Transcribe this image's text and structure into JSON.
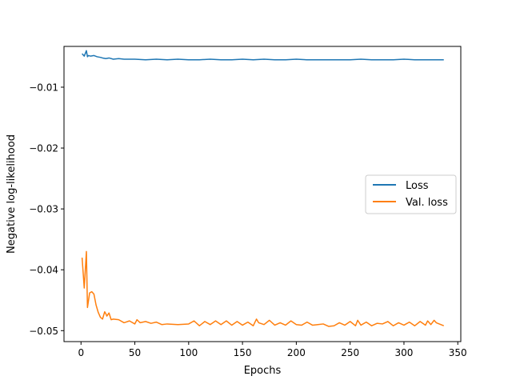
{
  "chart_data": {
    "type": "line",
    "title": "",
    "xlabel": "Epochs",
    "ylabel": "Negative log-likelihood",
    "xlim": [
      -15.8,
      352.8
    ],
    "ylim": [
      -0.0518,
      -0.0033
    ],
    "x_ticks": [
      0,
      50,
      100,
      150,
      200,
      250,
      300,
      350
    ],
    "x_tick_labels": [
      "0",
      "50",
      "100",
      "150",
      "200",
      "250",
      "300",
      "350"
    ],
    "y_ticks": [
      -0.01,
      -0.02,
      -0.03,
      -0.04,
      -0.05
    ],
    "y_tick_labels": [
      "−0.01",
      "−0.02",
      "−0.03",
      "−0.04",
      "−0.05"
    ],
    "grid": false,
    "legend_position": "center-right",
    "series": [
      {
        "name": "Loss",
        "color": "#1f77b4",
        "x": [
          1,
          3,
          5,
          6,
          7,
          9,
          12,
          15,
          18,
          20,
          23,
          26,
          30,
          35,
          40,
          50,
          60,
          70,
          80,
          90,
          100,
          110,
          120,
          130,
          140,
          150,
          160,
          170,
          180,
          190,
          200,
          210,
          220,
          230,
          240,
          250,
          260,
          270,
          280,
          290,
          300,
          310,
          320,
          330,
          337
        ],
        "values": [
          -0.0045,
          -0.0049,
          -0.004,
          -0.005,
          -0.0048,
          -0.0049,
          -0.0048,
          -0.005,
          -0.0051,
          -0.0052,
          -0.0053,
          -0.0052,
          -0.0054,
          -0.0053,
          -0.0054,
          -0.0054,
          -0.0055,
          -0.0054,
          -0.0055,
          -0.0054,
          -0.0055,
          -0.0055,
          -0.0054,
          -0.0055,
          -0.0055,
          -0.0054,
          -0.0055,
          -0.0054,
          -0.0055,
          -0.0055,
          -0.0054,
          -0.0055,
          -0.0055,
          -0.0055,
          -0.0055,
          -0.0055,
          -0.0054,
          -0.0055,
          -0.0055,
          -0.0055,
          -0.0054,
          -0.0055,
          -0.0055,
          -0.0055,
          -0.0055
        ]
      },
      {
        "name": "Val. loss",
        "color": "#ff7f0e",
        "x": [
          1,
          2,
          3,
          4,
          5,
          6,
          7,
          8,
          10,
          12,
          14,
          16,
          18,
          20,
          22,
          23,
          24,
          26,
          28,
          30,
          35,
          40,
          45,
          50,
          52,
          55,
          60,
          65,
          70,
          75,
          80,
          90,
          100,
          105,
          110,
          115,
          120,
          125,
          130,
          135,
          140,
          145,
          150,
          155,
          160,
          163,
          165,
          170,
          175,
          180,
          185,
          190,
          195,
          200,
          205,
          210,
          215,
          220,
          225,
          230,
          235,
          240,
          245,
          250,
          255,
          257,
          260,
          265,
          270,
          275,
          280,
          285,
          290,
          295,
          300,
          305,
          310,
          315,
          320,
          322,
          325,
          328,
          330,
          337
        ],
        "values": [
          -0.038,
          -0.0405,
          -0.043,
          -0.04,
          -0.037,
          -0.0462,
          -0.045,
          -0.0438,
          -0.0436,
          -0.044,
          -0.0458,
          -0.047,
          -0.0478,
          -0.0481,
          -0.0469,
          -0.0472,
          -0.0476,
          -0.0471,
          -0.0482,
          -0.0481,
          -0.0482,
          -0.0487,
          -0.0484,
          -0.0489,
          -0.0482,
          -0.0487,
          -0.0485,
          -0.0488,
          -0.0486,
          -0.049,
          -0.0489,
          -0.049,
          -0.0489,
          -0.0484,
          -0.0492,
          -0.0485,
          -0.049,
          -0.0484,
          -0.049,
          -0.0484,
          -0.0491,
          -0.0485,
          -0.0491,
          -0.0486,
          -0.0492,
          -0.0481,
          -0.0487,
          -0.049,
          -0.0483,
          -0.0491,
          -0.0487,
          -0.0491,
          -0.0484,
          -0.049,
          -0.0491,
          -0.0486,
          -0.0491,
          -0.049,
          -0.0489,
          -0.0493,
          -0.0492,
          -0.0487,
          -0.0491,
          -0.0485,
          -0.0492,
          -0.0483,
          -0.0491,
          -0.0486,
          -0.0492,
          -0.0488,
          -0.0489,
          -0.0485,
          -0.0492,
          -0.0487,
          -0.0491,
          -0.0486,
          -0.0492,
          -0.0485,
          -0.0491,
          -0.0484,
          -0.049,
          -0.0483,
          -0.0487,
          -0.0492
        ]
      }
    ]
  }
}
